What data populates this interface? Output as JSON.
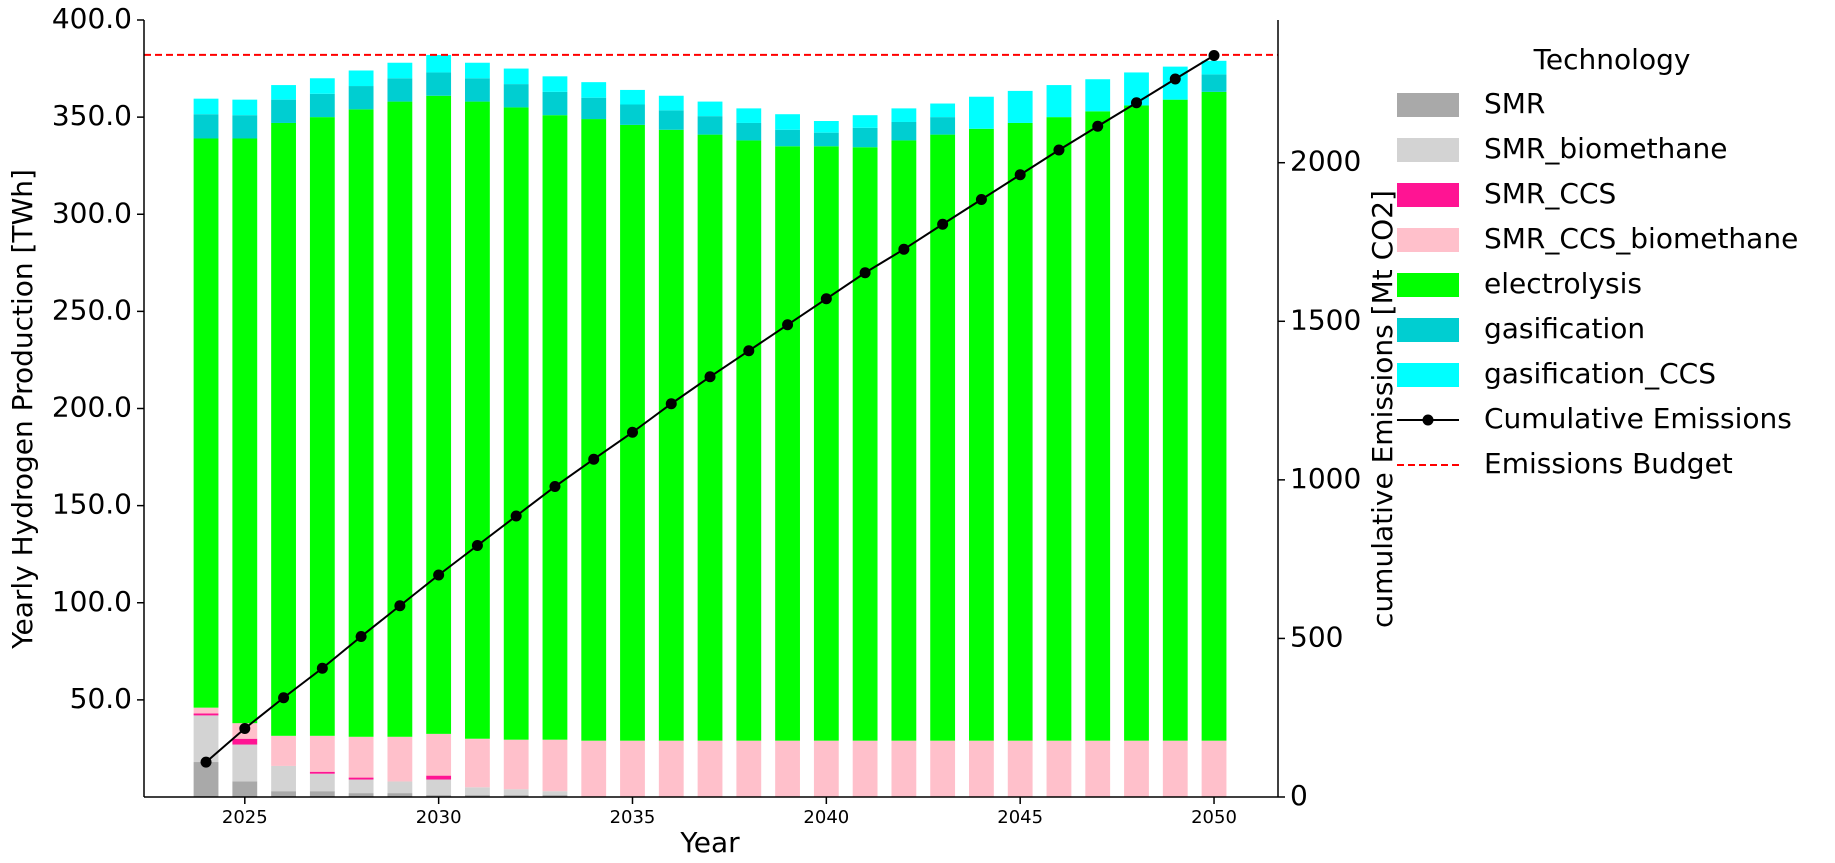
{
  "chart_data": {
    "type": "bar",
    "stacked": true,
    "xlabel": "Year",
    "ylabel": "Yearly Hydrogen Production [TWh]",
    "y2label": "cumulative Emissions [Mt CO2]",
    "legend_title": "Technology",
    "legend": "upper right outside",
    "x": [
      2024,
      2025,
      2026,
      2027,
      2028,
      2029,
      2030,
      2031,
      2032,
      2033,
      2034,
      2035,
      2036,
      2037,
      2038,
      2039,
      2040,
      2041,
      2042,
      2043,
      2044,
      2045,
      2046,
      2047,
      2048,
      2049,
      2050
    ],
    "xlim": [
      2022.4,
      2051.65
    ],
    "xticks": [
      2025,
      2030,
      2035,
      2040,
      2045,
      2050
    ],
    "ylim": [
      0,
      400
    ],
    "yticks": [
      {
        "value": 50,
        "label": "50.0"
      },
      {
        "value": 100,
        "label": "100.0"
      },
      {
        "value": 150,
        "label": "150.0"
      },
      {
        "value": 200,
        "label": "200.0"
      },
      {
        "value": 250,
        "label": "250.0"
      },
      {
        "value": 300,
        "label": "300.0"
      },
      {
        "value": 350,
        "label": "350.0"
      },
      {
        "value": 400,
        "label": "400.0"
      }
    ],
    "y2lim": [
      0,
      2450
    ],
    "y2ticks": [
      0,
      500,
      1000,
      1500,
      2000
    ],
    "series": [
      {
        "name": "SMR",
        "color": "#a9a9a9",
        "values": [
          18,
          8,
          3,
          3,
          2,
          2,
          1,
          1,
          1,
          1,
          0,
          0,
          0,
          0,
          0,
          0,
          0,
          0,
          0,
          0,
          0,
          0,
          0,
          0,
          0,
          0,
          0
        ]
      },
      {
        "name": "SMR_biomethane",
        "color": "#d3d3d3",
        "values": [
          24,
          19,
          13,
          9,
          7,
          6,
          8,
          4,
          3,
          2,
          0,
          0,
          0,
          0,
          0,
          0,
          0,
          0,
          0,
          0,
          0,
          0,
          0,
          0,
          0,
          0,
          0
        ]
      },
      {
        "name": "SMR_CCS",
        "color": "#ff1493",
        "values": [
          1,
          3,
          0,
          1,
          1,
          0,
          2,
          0,
          0,
          0,
          0,
          0,
          0,
          0,
          0,
          0,
          0,
          0,
          0,
          0,
          0,
          0,
          0,
          0,
          0,
          0,
          0
        ]
      },
      {
        "name": "SMR_CCS_biomethane",
        "color": "#ffc0cb",
        "values": [
          3,
          8,
          15.5,
          18.5,
          21,
          23,
          21.5,
          25,
          25.5,
          26.5,
          29,
          29,
          29,
          29,
          29,
          29,
          29,
          29,
          29,
          29,
          29,
          29,
          29,
          29,
          29,
          29,
          29
        ]
      },
      {
        "name": "electrolysis",
        "color": "#00ff00",
        "values": [
          293,
          301,
          315.5,
          318.5,
          323,
          327,
          328.5,
          328,
          325.5,
          321.5,
          320,
          317,
          314.5,
          312,
          309,
          306,
          306,
          305.5,
          309,
          312,
          315,
          318,
          321,
          324,
          327,
          330,
          334
        ]
      },
      {
        "name": "gasification",
        "color": "#00ced1",
        "values": [
          12.5,
          12,
          12,
          12,
          12,
          12,
          12,
          12,
          12,
          12,
          11,
          10.5,
          10,
          9.5,
          9,
          8.5,
          7,
          10,
          9.5,
          9,
          0,
          0,
          0,
          0,
          0,
          0,
          9
        ]
      },
      {
        "name": "gasification_CCS",
        "color": "#00ffff",
        "values": [
          8,
          8,
          7.5,
          8,
          8,
          8,
          9,
          8,
          8,
          8,
          8,
          7.5,
          7.5,
          7.5,
          7.5,
          8,
          6,
          6.5,
          7,
          7,
          16.5,
          16.5,
          16.5,
          16.5,
          17,
          17,
          7
        ]
      },
      {
        "name": "Cumulative Emissions",
        "color": "#000000",
        "type": "line",
        "axis": "y2",
        "values": [
          110,
          216,
          313,
          406,
          506,
          603,
          700,
          793,
          886,
          979,
          1065,
          1150,
          1240,
          1325,
          1407,
          1489,
          1571,
          1653,
          1727,
          1806,
          1884,
          1962,
          2040,
          2115,
          2189,
          2264,
          2338
        ]
      }
    ],
    "budget": {
      "name": "Emissions Budget",
      "value": 2340,
      "color": "#ff0000",
      "axis": "y2"
    }
  }
}
